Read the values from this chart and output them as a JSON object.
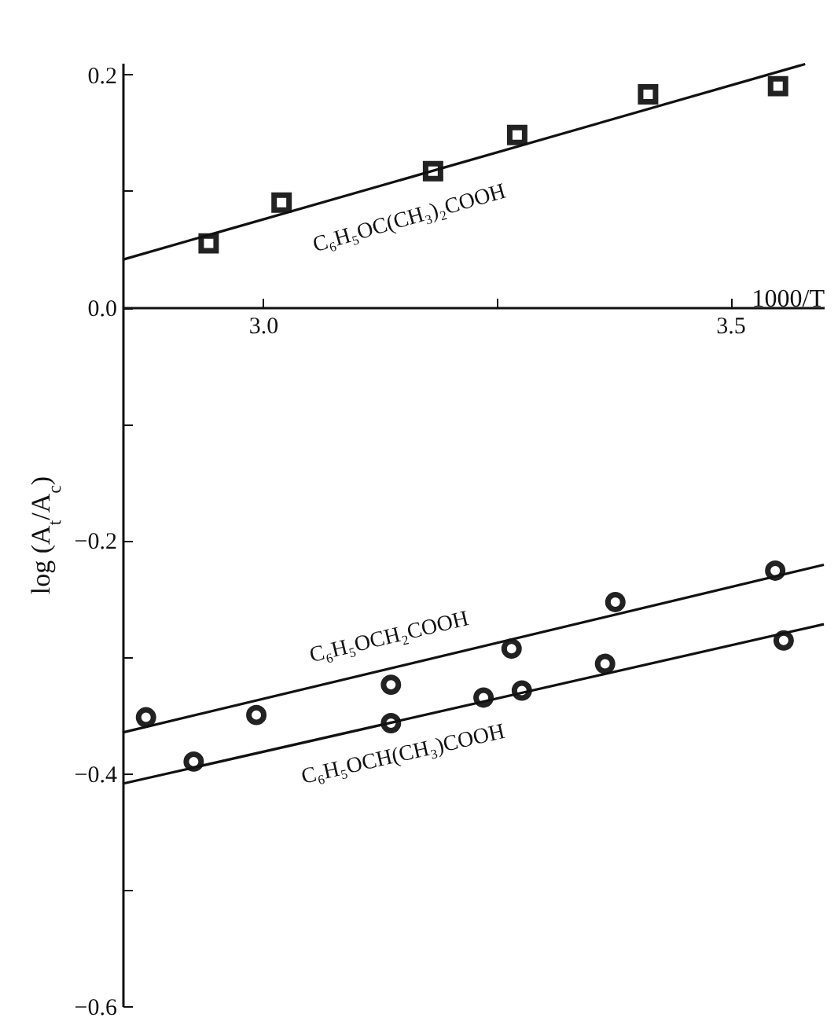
{
  "chart_data": {
    "type": "scatter",
    "xlabel": "1000/T",
    "ylabel": "log (A$_{t}$/A$_{c}$)",
    "xlim": [
      2.85,
      3.6
    ],
    "ylim": [
      -0.6,
      0.21
    ],
    "xticks": [
      {
        "value": 3.0,
        "label": "3.0"
      },
      {
        "value": 3.25,
        "label": null
      },
      {
        "value": 3.5,
        "label": "3.5"
      }
    ],
    "yticks": [
      {
        "value": 0.2,
        "label": "0.2"
      },
      {
        "value": 0.1,
        "label": null
      },
      {
        "value": 0,
        "label": "0.0"
      },
      {
        "value": -0.1,
        "label": null
      },
      {
        "value": -0.2,
        "label": "−0.2"
      },
      {
        "value": -0.3,
        "label": null
      },
      {
        "value": -0.4,
        "label": "−0.4"
      },
      {
        "value": -0.5,
        "label": null
      },
      {
        "value": -0.6,
        "label": "−0.6"
      }
    ],
    "series": [
      {
        "marker": "square",
        "color": "#222222",
        "x": [
          2.942,
          3.02,
          3.182,
          3.272,
          3.412,
          3.551
        ],
        "values": [
          0.055,
          0.09,
          0.117,
          0.148,
          0.183,
          0.19
        ]
      },
      {
        "marker": "circle",
        "color": "#222222",
        "x": [
          2.875,
          2.993,
          3.137,
          3.266,
          3.377,
          3.548
        ],
        "values": [
          -0.352,
          -0.35,
          -0.324,
          -0.293,
          -0.253,
          -0.226
        ]
      },
      {
        "marker": "circle",
        "color": "#222222",
        "x": [
          2.926,
          3.137,
          3.236,
          3.277,
          3.366,
          3.557
        ],
        "values": [
          -0.39,
          -0.357,
          -0.335,
          -0.329,
          -0.306,
          -0.286
        ]
      },
      {
        "type": "line",
        "color": "#111111",
        "x": [
          2.85,
          3.58
        ],
        "values": [
          0.041,
          0.209
        ]
      },
      {
        "type": "line",
        "color": "#111111",
        "x": [
          2.85,
          3.6
        ],
        "values": [
          -0.365,
          -0.221
        ]
      },
      {
        "type": "line",
        "color": "#111111",
        "x": [
          2.85,
          3.6
        ],
        "values": [
          -0.409,
          -0.272
        ]
      }
    ],
    "annotations": [
      "C₆H₅OC(CH₃)₂COOH",
      "C₆H₅OCH₂COOH",
      "C₆H₅OCH(CH₃)COOH"
    ]
  }
}
